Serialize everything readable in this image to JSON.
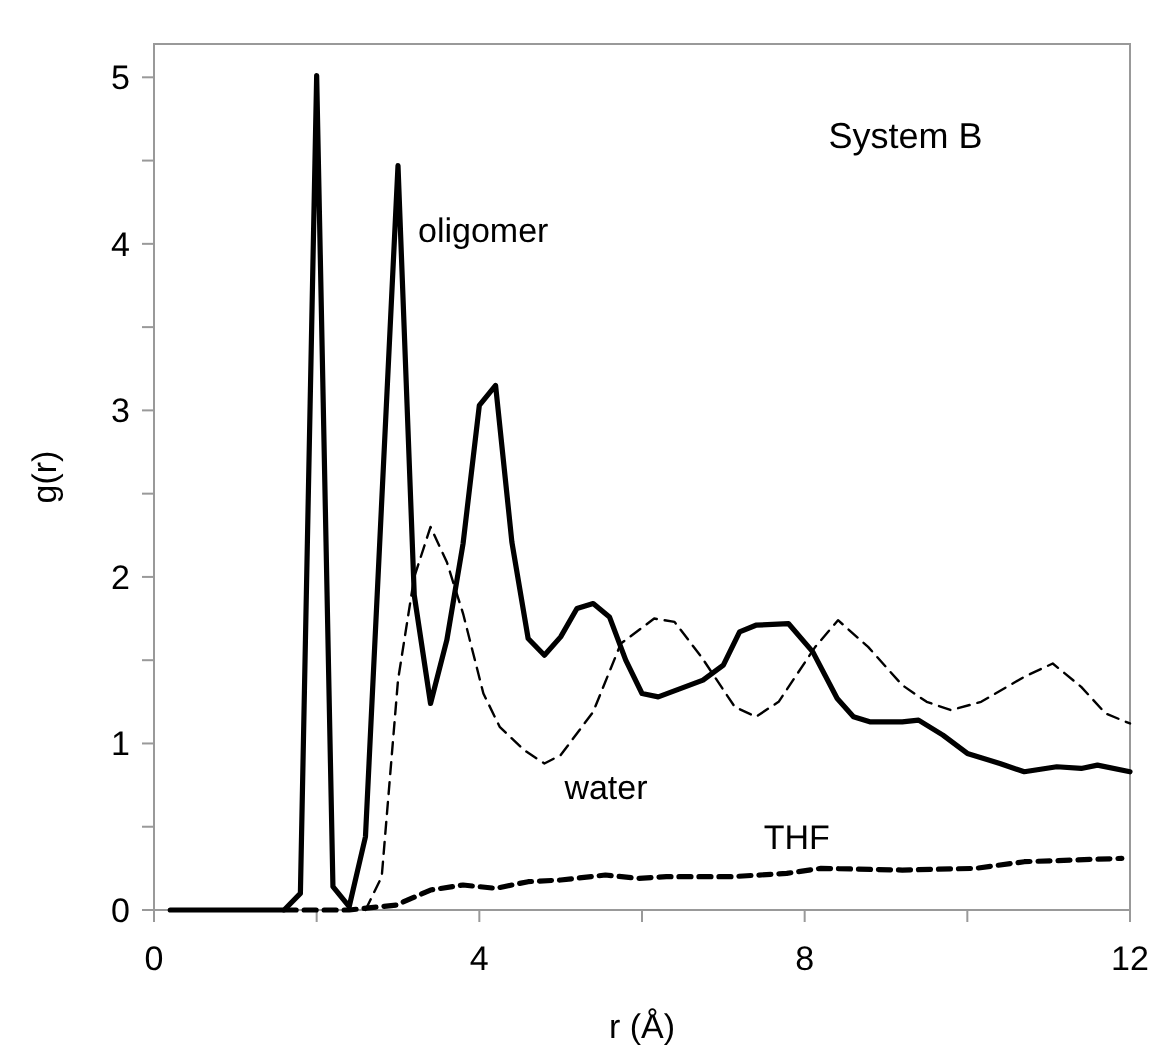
{
  "chart_data": {
    "type": "line",
    "xlabel": "r (Å)",
    "ylabel": "g(r)",
    "annotations": [
      "System B"
    ],
    "xlim": [
      0,
      12
    ],
    "xticks": [
      0,
      {
        "value": 2,
        "label": null
      },
      4,
      {
        "value": 6,
        "label": null
      },
      8,
      {
        "value": 10,
        "label": null
      },
      12
    ],
    "ylim": [
      0,
      5.2
    ],
    "yticks": [
      0,
      {
        "value": 0.5,
        "label": null
      },
      1,
      {
        "value": 1.5,
        "label": null
      },
      2,
      {
        "value": 2.5,
        "label": null
      },
      3,
      {
        "value": 3.5,
        "label": null
      },
      4,
      {
        "value": 4.5,
        "label": null
      },
      5
    ],
    "grid": false,
    "legend": false,
    "marker": "none",
    "series": [
      {
        "name": "oligomer",
        "color": "#000000",
        "line_style": "solid",
        "x": [
          0.2,
          1.6,
          1.8,
          2.0,
          2.2,
          2.4,
          2.6,
          3.0,
          3.2,
          3.4,
          3.6,
          3.8,
          4.0,
          4.2,
          4.4,
          4.6,
          4.8,
          5.0,
          5.2,
          5.4,
          5.6,
          5.8,
          6.0,
          6.2,
          6.75,
          7.0,
          7.2,
          7.4,
          7.8,
          8.1,
          8.4,
          8.6,
          8.8,
          9.2,
          9.4,
          9.7,
          10.0,
          10.4,
          10.7,
          11.1,
          11.4,
          11.6,
          12.0
        ],
        "values": [
          0,
          0,
          0.1,
          5.01,
          0.14,
          0.02,
          0.44,
          4.47,
          1.89,
          1.24,
          1.62,
          2.2,
          3.03,
          3.15,
          2.21,
          1.63,
          1.53,
          1.64,
          1.81,
          1.84,
          1.76,
          1.5,
          1.3,
          1.28,
          1.38,
          1.47,
          1.67,
          1.71,
          1.72,
          1.55,
          1.27,
          1.16,
          1.13,
          1.13,
          1.14,
          1.05,
          0.94,
          0.88,
          0.83,
          0.86,
          0.85,
          0.87,
          0.83
        ]
      },
      {
        "name": "water",
        "color": "#000000",
        "line_style": "dashed",
        "x": [
          2.6,
          2.8,
          3.0,
          3.2,
          3.4,
          3.6,
          3.8,
          4.05,
          4.25,
          4.55,
          4.8,
          5.0,
          5.4,
          5.74,
          6.15,
          6.4,
          6.73,
          7.14,
          7.4,
          7.68,
          8.13,
          8.41,
          8.78,
          9.2,
          9.5,
          9.8,
          10.17,
          10.7,
          11.05,
          11.4,
          11.7,
          12.0
        ],
        "values": [
          0,
          0.2,
          1.38,
          2.0,
          2.3,
          2.09,
          1.78,
          1.3,
          1.1,
          0.96,
          0.88,
          0.93,
          1.19,
          1.6,
          1.75,
          1.73,
          1.52,
          1.22,
          1.16,
          1.25,
          1.58,
          1.74,
          1.58,
          1.35,
          1.25,
          1.2,
          1.25,
          1.4,
          1.48,
          1.34,
          1.18,
          1.12
        ]
      },
      {
        "name": "THF",
        "color": "#000000",
        "line_style": "dashed",
        "x": [
          1.6,
          2.4,
          2.98,
          3.4,
          3.8,
          4.2,
          4.6,
          5.0,
          5.55,
          5.95,
          6.3,
          7.1,
          7.78,
          8.2,
          9.2,
          10.1,
          10.7,
          11.9
        ],
        "values": [
          0,
          0,
          0.03,
          0.12,
          0.15,
          0.13,
          0.17,
          0.18,
          0.21,
          0.19,
          0.2,
          0.2,
          0.22,
          0.25,
          0.24,
          0.25,
          0.29,
          0.31
        ]
      }
    ]
  }
}
